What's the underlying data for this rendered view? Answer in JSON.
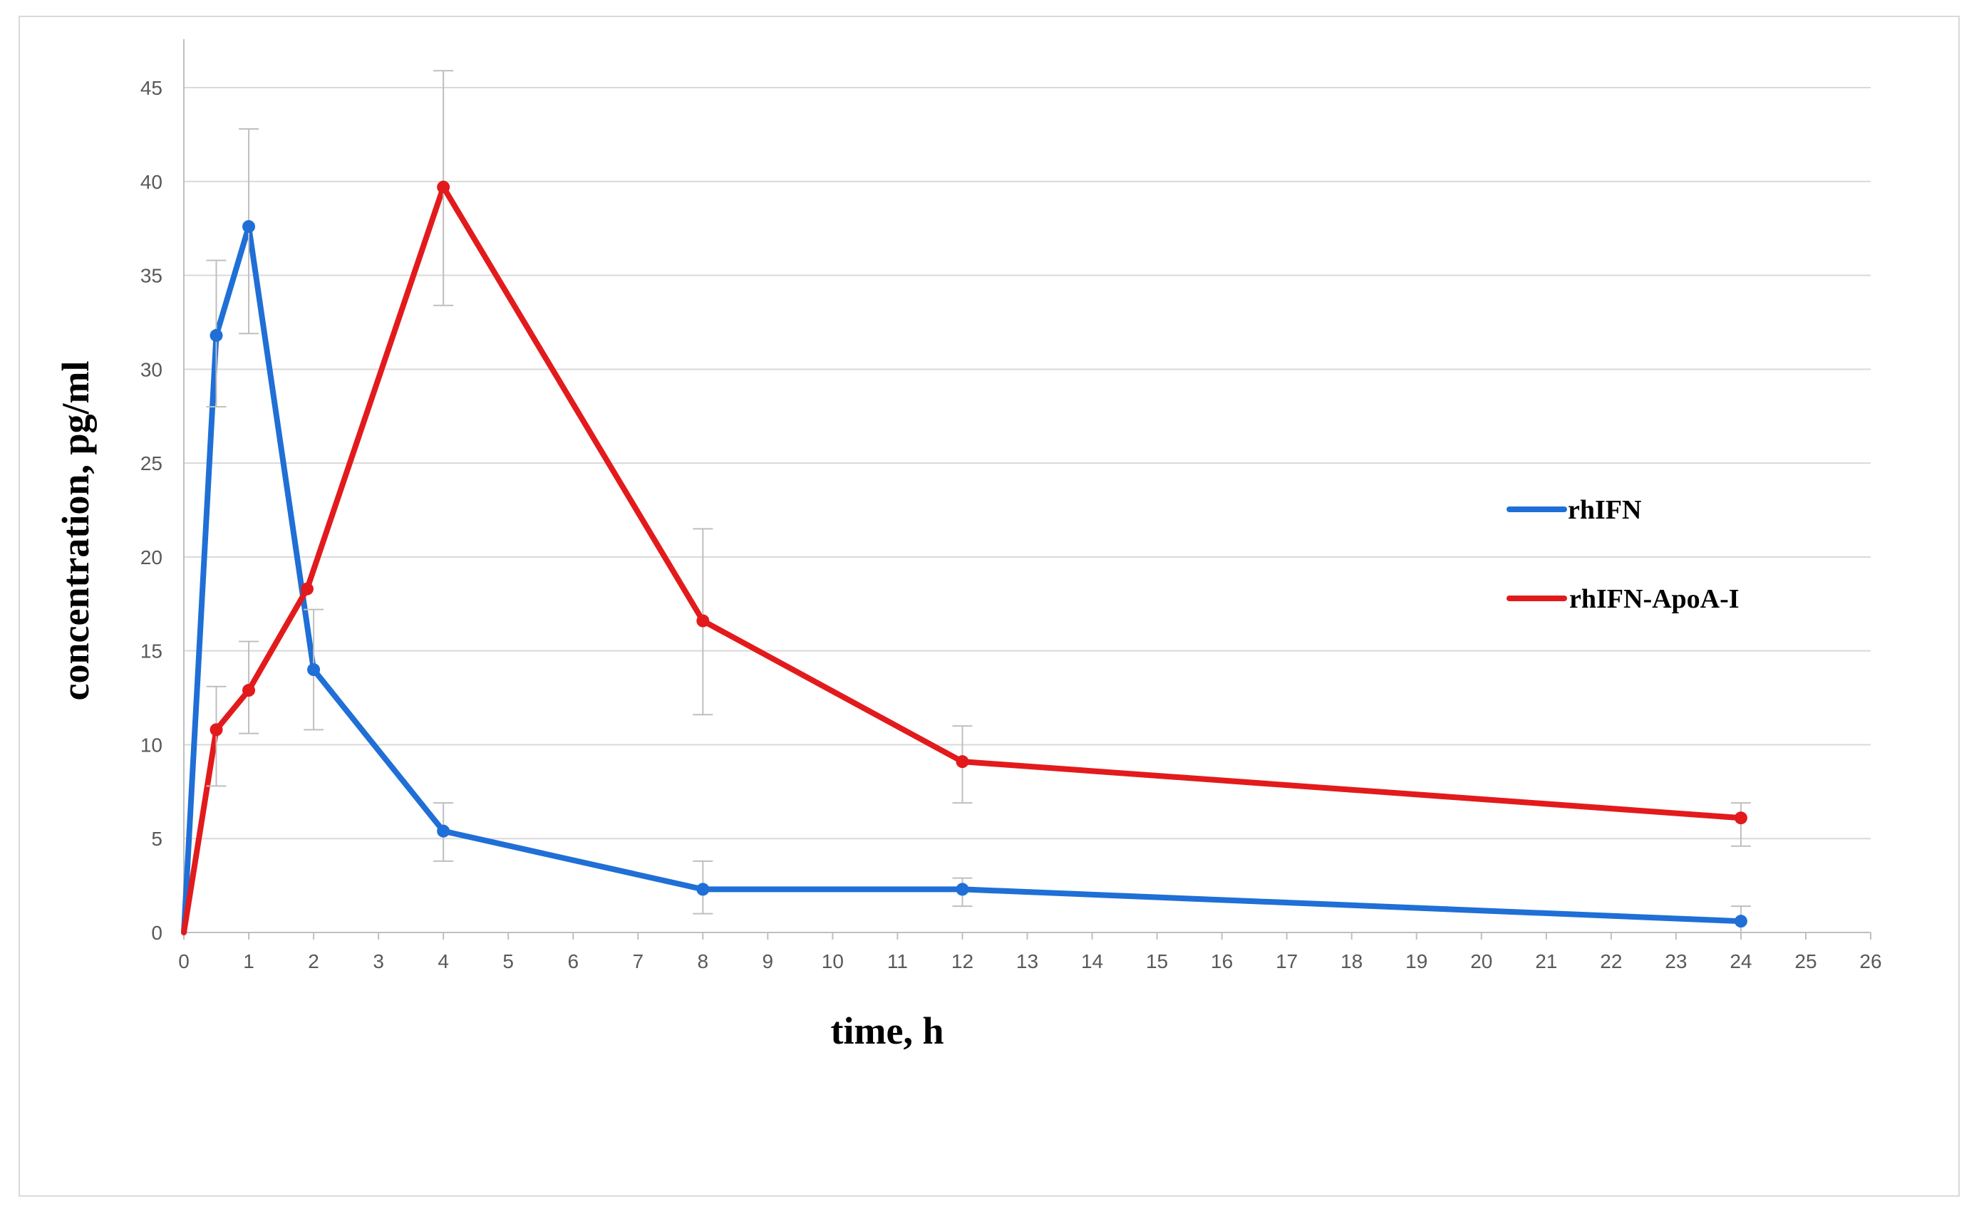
{
  "chart_data": {
    "type": "line",
    "xlabel": "time, h",
    "ylabel": "concentration, pg/ml",
    "xlim": [
      0,
      26
    ],
    "ylim": [
      0,
      45
    ],
    "xticks": [
      0,
      1,
      2,
      3,
      4,
      5,
      6,
      7,
      8,
      9,
      10,
      11,
      12,
      13,
      14,
      15,
      16,
      17,
      18,
      19,
      20,
      21,
      22,
      23,
      24,
      25,
      26
    ],
    "yticks": [
      0,
      5,
      10,
      15,
      20,
      25,
      30,
      35,
      40,
      45
    ],
    "grid": "horizontal",
    "legend_position": "right",
    "series": [
      {
        "name": "rhIFN",
        "color": "#1f6fd6",
        "x": [
          0,
          0.5,
          1,
          2,
          4,
          8,
          12,
          24
        ],
        "y": [
          0,
          31.8,
          37.6,
          14.0,
          5.4,
          2.3,
          2.3,
          0.6
        ],
        "err_upper": [
          0,
          35.8,
          42.8,
          17.2,
          6.9,
          3.8,
          2.9,
          1.4
        ],
        "err_lower": [
          0,
          28.0,
          31.9,
          10.8,
          3.8,
          1.0,
          1.4,
          0.0
        ]
      },
      {
        "name": "rhIFN-ApoA-I",
        "color": "#e31a1c",
        "x": [
          0,
          0.5,
          1,
          1.9,
          4,
          8,
          12,
          24
        ],
        "y": [
          0,
          10.8,
          12.9,
          18.3,
          39.7,
          16.6,
          9.1,
          6.1
        ],
        "err_upper": [
          0,
          13.1,
          15.5,
          18.3,
          45.9,
          21.5,
          11.0,
          6.9
        ],
        "err_lower": [
          0,
          7.8,
          10.6,
          18.3,
          33.4,
          11.6,
          6.9,
          4.6
        ]
      }
    ]
  }
}
